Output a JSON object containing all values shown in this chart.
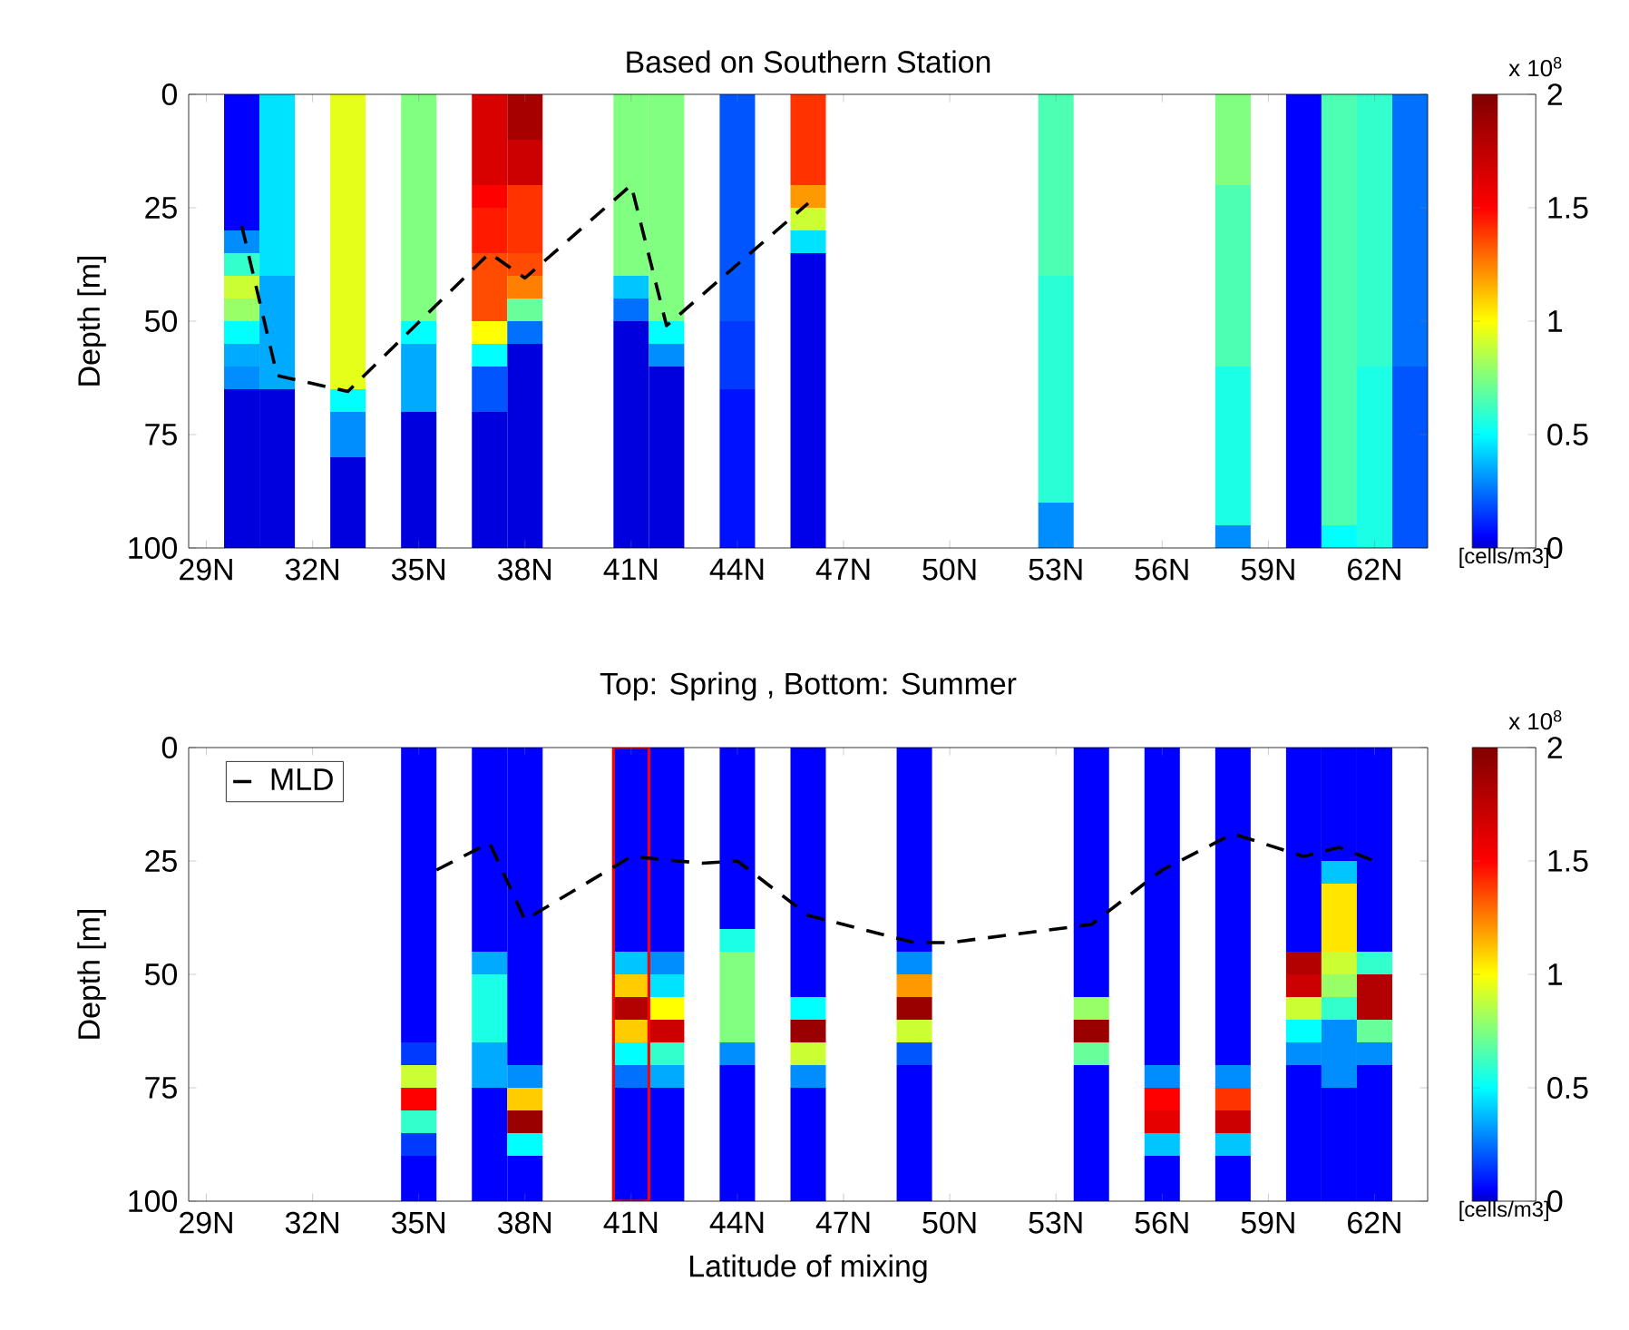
{
  "chart_data": [
    {
      "type": "heatmap",
      "title": "Based on Southern Station",
      "ylabel": "Depth [m]",
      "clabel": "[cells/m3]",
      "annotations": [
        "x 10$^{8}$"
      ],
      "x": [
        29,
        30,
        31,
        32,
        33,
        34,
        35,
        36,
        37,
        38,
        39,
        40,
        41,
        42,
        43,
        44,
        45,
        46,
        47,
        48,
        49,
        50,
        51,
        52,
        53,
        54,
        55,
        56,
        57,
        58,
        59,
        60,
        61,
        62,
        63
      ],
      "y": [
        2.5,
        7.5,
        12.5,
        17.5,
        22.5,
        27.5,
        32.5,
        37.5,
        42.5,
        47.5,
        52.5,
        57.5,
        62.5,
        67.5,
        72.5,
        77.5,
        82.5,
        87.5,
        92.5,
        97.5
      ],
      "cells": [
        [
          null,
          0.05,
          0.45,
          null,
          0.95,
          null,
          0.75,
          null,
          1.65,
          1.85,
          null,
          null,
          0.75,
          0.75,
          null,
          0.2,
          null,
          1.4,
          null,
          null,
          null,
          null,
          null,
          null,
          0.65,
          null,
          null,
          null,
          null,
          0.75,
          null,
          0.05,
          0.65,
          0.6,
          0.25
        ],
        [
          null,
          0.05,
          0.45,
          null,
          0.95,
          null,
          0.75,
          null,
          1.65,
          1.85,
          null,
          null,
          0.75,
          0.75,
          null,
          0.2,
          null,
          1.4,
          null,
          null,
          null,
          null,
          null,
          null,
          0.65,
          null,
          null,
          null,
          null,
          0.75,
          null,
          0.05,
          0.65,
          0.6,
          0.25
        ],
        [
          null,
          0.05,
          0.45,
          null,
          0.95,
          null,
          0.75,
          null,
          1.65,
          1.7,
          null,
          null,
          0.75,
          0.75,
          null,
          0.2,
          null,
          1.4,
          null,
          null,
          null,
          null,
          null,
          null,
          0.65,
          null,
          null,
          null,
          null,
          0.75,
          null,
          0.05,
          0.65,
          0.6,
          0.25
        ],
        [
          null,
          0.05,
          0.45,
          null,
          0.95,
          null,
          0.75,
          null,
          1.65,
          1.7,
          null,
          null,
          0.75,
          0.75,
          null,
          0.2,
          null,
          1.4,
          null,
          null,
          null,
          null,
          null,
          null,
          0.65,
          null,
          null,
          null,
          null,
          0.75,
          null,
          0.05,
          0.65,
          0.6,
          0.25
        ],
        [
          null,
          0.05,
          0.45,
          null,
          0.95,
          null,
          0.75,
          null,
          1.5,
          1.4,
          null,
          null,
          0.75,
          0.75,
          null,
          0.2,
          null,
          1.2,
          null,
          null,
          null,
          null,
          null,
          null,
          0.65,
          null,
          null,
          null,
          null,
          0.65,
          null,
          0.05,
          0.65,
          0.6,
          0.25
        ],
        [
          null,
          0.05,
          0.45,
          null,
          0.95,
          null,
          0.75,
          null,
          1.45,
          1.4,
          null,
          null,
          0.75,
          0.75,
          null,
          0.2,
          null,
          0.9,
          null,
          null,
          null,
          null,
          null,
          null,
          0.65,
          null,
          null,
          null,
          null,
          0.65,
          null,
          0.05,
          0.65,
          0.6,
          0.25
        ],
        [
          null,
          0.3,
          0.45,
          null,
          0.95,
          null,
          0.75,
          null,
          1.45,
          1.4,
          null,
          null,
          0.75,
          0.75,
          null,
          0.2,
          null,
          0.45,
          null,
          null,
          null,
          null,
          null,
          null,
          0.65,
          null,
          null,
          null,
          null,
          0.65,
          null,
          0.05,
          0.65,
          0.6,
          0.25
        ],
        [
          null,
          0.6,
          0.45,
          null,
          0.95,
          null,
          0.75,
          null,
          1.35,
          1.35,
          null,
          null,
          0.75,
          0.75,
          null,
          0.2,
          null,
          0.03,
          null,
          null,
          null,
          null,
          null,
          null,
          0.65,
          null,
          null,
          null,
          null,
          0.65,
          null,
          0.05,
          0.65,
          0.6,
          0.25
        ],
        [
          null,
          0.9,
          0.35,
          null,
          0.95,
          null,
          0.75,
          null,
          1.35,
          1.25,
          null,
          null,
          0.4,
          0.75,
          null,
          0.2,
          null,
          0.03,
          null,
          null,
          null,
          null,
          null,
          null,
          0.58,
          null,
          null,
          null,
          null,
          0.65,
          null,
          0.05,
          0.65,
          0.6,
          0.25
        ],
        [
          null,
          0.8,
          0.35,
          null,
          0.95,
          null,
          0.75,
          null,
          1.35,
          0.7,
          null,
          null,
          0.25,
          0.75,
          null,
          0.2,
          null,
          0.03,
          null,
          null,
          null,
          null,
          null,
          null,
          0.58,
          null,
          null,
          null,
          null,
          0.65,
          null,
          0.05,
          0.65,
          0.6,
          0.25
        ],
        [
          null,
          0.5,
          0.35,
          null,
          0.95,
          null,
          0.5,
          null,
          1.0,
          0.25,
          null,
          null,
          0.02,
          0.5,
          null,
          0.15,
          null,
          0.03,
          null,
          null,
          null,
          null,
          null,
          null,
          0.58,
          null,
          null,
          null,
          null,
          0.65,
          null,
          0.05,
          0.65,
          0.6,
          0.25
        ],
        [
          null,
          0.35,
          0.35,
          null,
          0.95,
          null,
          0.35,
          null,
          0.5,
          0.02,
          null,
          null,
          0.02,
          0.3,
          null,
          0.15,
          null,
          0.03,
          null,
          null,
          null,
          null,
          null,
          null,
          0.58,
          null,
          null,
          null,
          null,
          0.65,
          null,
          0.05,
          0.65,
          0.6,
          0.25
        ],
        [
          null,
          0.3,
          0.35,
          null,
          0.95,
          null,
          0.35,
          null,
          0.2,
          0.02,
          null,
          null,
          0.02,
          0.02,
          null,
          0.15,
          null,
          0.03,
          null,
          null,
          null,
          null,
          null,
          null,
          0.58,
          null,
          null,
          null,
          null,
          0.55,
          null,
          0.05,
          0.65,
          0.55,
          0.2
        ],
        [
          null,
          0.02,
          0.02,
          null,
          0.5,
          null,
          0.35,
          null,
          0.2,
          0.02,
          null,
          null,
          0.02,
          0.02,
          null,
          0.08,
          null,
          0.03,
          null,
          null,
          null,
          null,
          null,
          null,
          0.58,
          null,
          null,
          null,
          null,
          0.55,
          null,
          0.05,
          0.65,
          0.55,
          0.2
        ],
        [
          null,
          0.02,
          0.02,
          null,
          0.3,
          null,
          0.02,
          null,
          0.02,
          0.02,
          null,
          null,
          0.02,
          0.02,
          null,
          0.08,
          null,
          0.03,
          null,
          null,
          null,
          null,
          null,
          null,
          0.58,
          null,
          null,
          null,
          null,
          0.55,
          null,
          0.05,
          0.65,
          0.55,
          0.2
        ],
        [
          null,
          0.02,
          0.02,
          null,
          0.3,
          null,
          0.02,
          null,
          0.02,
          0.02,
          null,
          null,
          0.02,
          0.02,
          null,
          0.08,
          null,
          0.03,
          null,
          null,
          null,
          null,
          null,
          null,
          0.58,
          null,
          null,
          null,
          null,
          0.55,
          null,
          0.05,
          0.65,
          0.55,
          0.2
        ],
        [
          null,
          0.02,
          0.02,
          null,
          0.02,
          null,
          0.02,
          null,
          0.02,
          0.02,
          null,
          null,
          0.02,
          0.02,
          null,
          0.08,
          null,
          0.03,
          null,
          null,
          null,
          null,
          null,
          null,
          0.58,
          null,
          null,
          null,
          null,
          0.55,
          null,
          0.05,
          0.65,
          0.55,
          0.2
        ],
        [
          null,
          0.02,
          0.02,
          null,
          0.02,
          null,
          0.02,
          null,
          0.02,
          0.02,
          null,
          null,
          0.02,
          0.02,
          null,
          0.08,
          null,
          0.03,
          null,
          null,
          null,
          null,
          null,
          null,
          0.58,
          null,
          null,
          null,
          null,
          0.55,
          null,
          0.05,
          0.65,
          0.55,
          0.2
        ],
        [
          null,
          0.02,
          0.02,
          null,
          0.02,
          null,
          0.02,
          null,
          0.02,
          0.02,
          null,
          null,
          0.02,
          0.02,
          null,
          0.08,
          null,
          0.03,
          null,
          null,
          null,
          null,
          null,
          null,
          0.3,
          null,
          null,
          null,
          null,
          0.55,
          null,
          0.05,
          0.65,
          0.55,
          0.2
        ],
        [
          null,
          0.02,
          0.02,
          null,
          0.02,
          null,
          0.02,
          null,
          0.02,
          0.02,
          null,
          null,
          0.02,
          0.02,
          null,
          0.08,
          null,
          0.03,
          null,
          null,
          null,
          null,
          null,
          null,
          0.3,
          null,
          null,
          null,
          null,
          0.3,
          null,
          0.05,
          0.5,
          0.55,
          0.2
        ]
      ],
      "clim": [
        0,
        2
      ],
      "cticks": [
        0,
        0.5,
        1,
        1.5,
        2
      ],
      "xlim": [
        28.5,
        63.5
      ],
      "xticks": [
        {
          "value": 29,
          "label": "29N"
        },
        {
          "value": 32,
          "label": "32N"
        },
        {
          "value": 35,
          "label": "35N"
        },
        {
          "value": 38,
          "label": "38N"
        },
        {
          "value": 41,
          "label": "41N"
        },
        {
          "value": 44,
          "label": "44N"
        },
        {
          "value": 47,
          "label": "47N"
        },
        {
          "value": 50,
          "label": "50N"
        },
        {
          "value": 53,
          "label": "53N"
        },
        {
          "value": 56,
          "label": "56N"
        },
        {
          "value": 59,
          "label": "59N"
        },
        {
          "value": 62,
          "label": "62N"
        }
      ],
      "ylim": [
        100,
        0
      ],
      "yticks": [
        0,
        25,
        50,
        75,
        100
      ],
      "series": [
        {
          "type": "line",
          "color": "#000000",
          "line_style": "dashed",
          "x": [
            30,
            31,
            33,
            37,
            38,
            41,
            42,
            46
          ],
          "values": [
            29,
            62,
            65.5,
            35,
            40.5,
            20,
            51,
            24
          ]
        }
      ]
    },
    {
      "type": "heatmap",
      "title": "Top: Spring , Bottom: Summer",
      "xlabel": "Latitude of mixing",
      "ylabel": "Depth [m]",
      "clabel": "[cells/m3]",
      "annotations": [
        "x 10$^{8}$"
      ],
      "legend": "top left",
      "x": [
        29,
        30,
        31,
        32,
        33,
        34,
        35,
        36,
        37,
        38,
        39,
        40,
        41,
        42,
        43,
        44,
        45,
        46,
        47,
        48,
        49,
        50,
        51,
        52,
        53,
        54,
        55,
        56,
        57,
        58,
        59,
        60,
        61,
        62,
        63
      ],
      "y": [
        2.5,
        7.5,
        12.5,
        17.5,
        22.5,
        27.5,
        32.5,
        37.5,
        42.5,
        47.5,
        52.5,
        57.5,
        62.5,
        67.5,
        72.5,
        77.5,
        82.5,
        87.5,
        92.5,
        97.5
      ],
      "cells": [
        [
          null,
          null,
          null,
          null,
          null,
          null,
          0.05,
          null,
          0.05,
          0.05,
          null,
          null,
          0.05,
          0.05,
          null,
          0.05,
          null,
          0.05,
          null,
          null,
          0.05,
          null,
          null,
          null,
          null,
          0.05,
          null,
          0.05,
          null,
          0.05,
          null,
          0.05,
          0.05,
          0.05,
          null
        ],
        [
          null,
          null,
          null,
          null,
          null,
          null,
          0.05,
          null,
          0.05,
          0.05,
          null,
          null,
          0.05,
          0.05,
          null,
          0.05,
          null,
          0.05,
          null,
          null,
          0.05,
          null,
          null,
          null,
          null,
          0.05,
          null,
          0.05,
          null,
          0.05,
          null,
          0.05,
          0.05,
          0.05,
          null
        ],
        [
          null,
          null,
          null,
          null,
          null,
          null,
          0.05,
          null,
          0.05,
          0.05,
          null,
          null,
          0.05,
          0.05,
          null,
          0.05,
          null,
          0.05,
          null,
          null,
          0.05,
          null,
          null,
          null,
          null,
          0.05,
          null,
          0.05,
          null,
          0.05,
          null,
          0.05,
          0.05,
          0.05,
          null
        ],
        [
          null,
          null,
          null,
          null,
          null,
          null,
          0.05,
          null,
          0.05,
          0.05,
          null,
          null,
          0.05,
          0.05,
          null,
          0.05,
          null,
          0.05,
          null,
          null,
          0.05,
          null,
          null,
          null,
          null,
          0.05,
          null,
          0.05,
          null,
          0.05,
          null,
          0.05,
          0.05,
          0.05,
          null
        ],
        [
          null,
          null,
          null,
          null,
          null,
          null,
          0.05,
          null,
          0.05,
          0.05,
          null,
          null,
          0.05,
          0.05,
          null,
          0.05,
          null,
          0.05,
          null,
          null,
          0.05,
          null,
          null,
          null,
          null,
          0.05,
          null,
          0.05,
          null,
          0.05,
          null,
          0.05,
          0.05,
          0.05,
          null
        ],
        [
          null,
          null,
          null,
          null,
          null,
          null,
          0.05,
          null,
          0.05,
          0.05,
          null,
          null,
          0.05,
          0.05,
          null,
          0.05,
          null,
          0.05,
          null,
          null,
          0.05,
          null,
          null,
          null,
          null,
          0.05,
          null,
          0.05,
          null,
          0.05,
          null,
          0.05,
          0.4,
          0.05,
          null
        ],
        [
          null,
          null,
          null,
          null,
          null,
          null,
          0.05,
          null,
          0.05,
          0.05,
          null,
          null,
          0.05,
          0.05,
          null,
          0.05,
          null,
          0.05,
          null,
          null,
          0.05,
          null,
          null,
          null,
          null,
          0.05,
          null,
          0.05,
          null,
          0.05,
          null,
          0.05,
          1.05,
          0.05,
          null
        ],
        [
          null,
          null,
          null,
          null,
          null,
          null,
          0.05,
          null,
          0.05,
          0.05,
          null,
          null,
          0.05,
          0.05,
          null,
          0.05,
          null,
          0.05,
          null,
          null,
          0.05,
          null,
          null,
          null,
          null,
          0.05,
          null,
          0.05,
          null,
          0.05,
          null,
          0.05,
          1.05,
          0.05,
          null
        ],
        [
          null,
          null,
          null,
          null,
          null,
          null,
          0.05,
          null,
          0.05,
          0.05,
          null,
          null,
          0.05,
          0.05,
          null,
          0.55,
          null,
          0.05,
          null,
          null,
          0.05,
          null,
          null,
          null,
          null,
          0.05,
          null,
          0.05,
          null,
          0.05,
          null,
          0.05,
          1.05,
          0.05,
          null
        ],
        [
          null,
          null,
          null,
          null,
          null,
          null,
          0.05,
          null,
          0.35,
          0.05,
          null,
          null,
          0.4,
          0.3,
          null,
          0.75,
          null,
          0.05,
          null,
          null,
          0.3,
          null,
          null,
          null,
          null,
          0.05,
          null,
          0.05,
          null,
          0.05,
          null,
          1.8,
          0.9,
          0.6,
          null
        ],
        [
          null,
          null,
          null,
          null,
          null,
          null,
          0.05,
          null,
          0.55,
          0.05,
          null,
          null,
          1.1,
          0.45,
          null,
          0.75,
          null,
          0.05,
          null,
          null,
          1.2,
          null,
          null,
          null,
          null,
          0.05,
          null,
          0.05,
          null,
          0.05,
          null,
          1.7,
          0.8,
          1.8,
          null
        ],
        [
          null,
          null,
          null,
          null,
          null,
          null,
          0.05,
          null,
          0.55,
          0.05,
          null,
          null,
          1.8,
          1.0,
          null,
          0.75,
          null,
          0.5,
          null,
          null,
          1.9,
          null,
          null,
          null,
          null,
          0.8,
          null,
          0.05,
          null,
          0.05,
          null,
          0.9,
          0.6,
          1.8,
          null
        ],
        [
          null,
          null,
          null,
          null,
          null,
          null,
          0.05,
          null,
          0.55,
          0.05,
          null,
          null,
          1.1,
          1.7,
          null,
          0.75,
          null,
          1.9,
          null,
          null,
          0.9,
          null,
          null,
          null,
          null,
          1.9,
          null,
          0.05,
          null,
          0.05,
          null,
          0.5,
          0.3,
          0.7,
          null
        ],
        [
          null,
          null,
          null,
          null,
          null,
          null,
          0.15,
          null,
          0.35,
          0.05,
          null,
          null,
          0.5,
          0.6,
          null,
          0.3,
          null,
          0.9,
          null,
          null,
          0.2,
          null,
          null,
          null,
          null,
          0.7,
          null,
          0.05,
          null,
          0.05,
          null,
          0.3,
          0.3,
          0.3,
          null
        ],
        [
          null,
          null,
          null,
          null,
          null,
          null,
          0.9,
          null,
          0.35,
          0.3,
          null,
          null,
          0.25,
          0.35,
          null,
          0.05,
          null,
          0.3,
          null,
          null,
          0.05,
          null,
          null,
          null,
          null,
          0.05,
          null,
          0.3,
          null,
          0.3,
          null,
          0.05,
          0.3,
          0.05,
          null
        ],
        [
          null,
          null,
          null,
          null,
          null,
          null,
          1.5,
          null,
          0.05,
          1.1,
          null,
          null,
          0.05,
          0.05,
          null,
          0.05,
          null,
          0.05,
          null,
          null,
          0.05,
          null,
          null,
          null,
          null,
          0.05,
          null,
          1.5,
          null,
          1.4,
          null,
          0.05,
          0.05,
          0.05,
          null
        ],
        [
          null,
          null,
          null,
          null,
          null,
          null,
          0.6,
          null,
          0.05,
          1.9,
          null,
          null,
          0.05,
          0.05,
          null,
          0.05,
          null,
          0.05,
          null,
          null,
          0.05,
          null,
          null,
          null,
          null,
          0.05,
          null,
          1.6,
          null,
          1.7,
          null,
          0.05,
          0.05,
          0.05,
          null
        ],
        [
          null,
          null,
          null,
          null,
          null,
          null,
          0.15,
          null,
          0.05,
          0.5,
          null,
          null,
          0.05,
          0.05,
          null,
          0.05,
          null,
          0.05,
          null,
          null,
          0.05,
          null,
          null,
          null,
          null,
          0.05,
          null,
          0.4,
          null,
          0.4,
          null,
          0.05,
          0.05,
          0.05,
          null
        ],
        [
          null,
          null,
          null,
          null,
          null,
          null,
          0.05,
          null,
          0.05,
          0.05,
          null,
          null,
          0.05,
          0.05,
          null,
          0.05,
          null,
          0.05,
          null,
          null,
          0.05,
          null,
          null,
          null,
          null,
          0.05,
          null,
          0.05,
          null,
          0.05,
          null,
          0.05,
          0.05,
          0.05,
          null
        ],
        [
          null,
          null,
          null,
          null,
          null,
          null,
          0.05,
          null,
          0.05,
          0.05,
          null,
          null,
          0.05,
          0.05,
          null,
          0.05,
          null,
          0.05,
          null,
          null,
          0.05,
          null,
          null,
          null,
          null,
          0.05,
          null,
          0.05,
          null,
          0.05,
          null,
          0.05,
          0.05,
          0.05,
          null
        ]
      ],
      "clim": [
        0,
        2
      ],
      "cticks": [
        0,
        0.5,
        1,
        1.5,
        2
      ],
      "xlim": [
        28.5,
        63.5
      ],
      "xticks": [
        {
          "value": 29,
          "label": "29N"
        },
        {
          "value": 32,
          "label": "32N"
        },
        {
          "value": 35,
          "label": "35N"
        },
        {
          "value": 38,
          "label": "38N"
        },
        {
          "value": 41,
          "label": "41N"
        },
        {
          "value": 44,
          "label": "44N"
        },
        {
          "value": 47,
          "label": "47N"
        },
        {
          "value": 50,
          "label": "50N"
        },
        {
          "value": 53,
          "label": "53N"
        },
        {
          "value": 56,
          "label": "56N"
        },
        {
          "value": 59,
          "label": "59N"
        },
        {
          "value": 62,
          "label": "62N"
        }
      ],
      "ylim": [
        100,
        0
      ],
      "yticks": [
        0,
        25,
        50,
        75,
        100
      ],
      "ref_lines": [
        {
          "axis": "x",
          "value": 40.5,
          "color": "#ff0000"
        },
        {
          "axis": "x",
          "value": 41.5,
          "color": "#ff0000"
        }
      ],
      "series": [
        {
          "type": "line",
          "name": "MLD",
          "color": "#000000",
          "line_style": "dashed",
          "x": [
            35.5,
            37,
            38,
            41,
            43,
            44,
            46,
            47,
            49,
            50,
            54,
            56,
            58,
            60,
            61,
            62
          ],
          "values": [
            27,
            21,
            38,
            24,
            25.5,
            25,
            37,
            39,
            43,
            43,
            39,
            27,
            19,
            24,
            22,
            25
          ]
        }
      ]
    }
  ]
}
